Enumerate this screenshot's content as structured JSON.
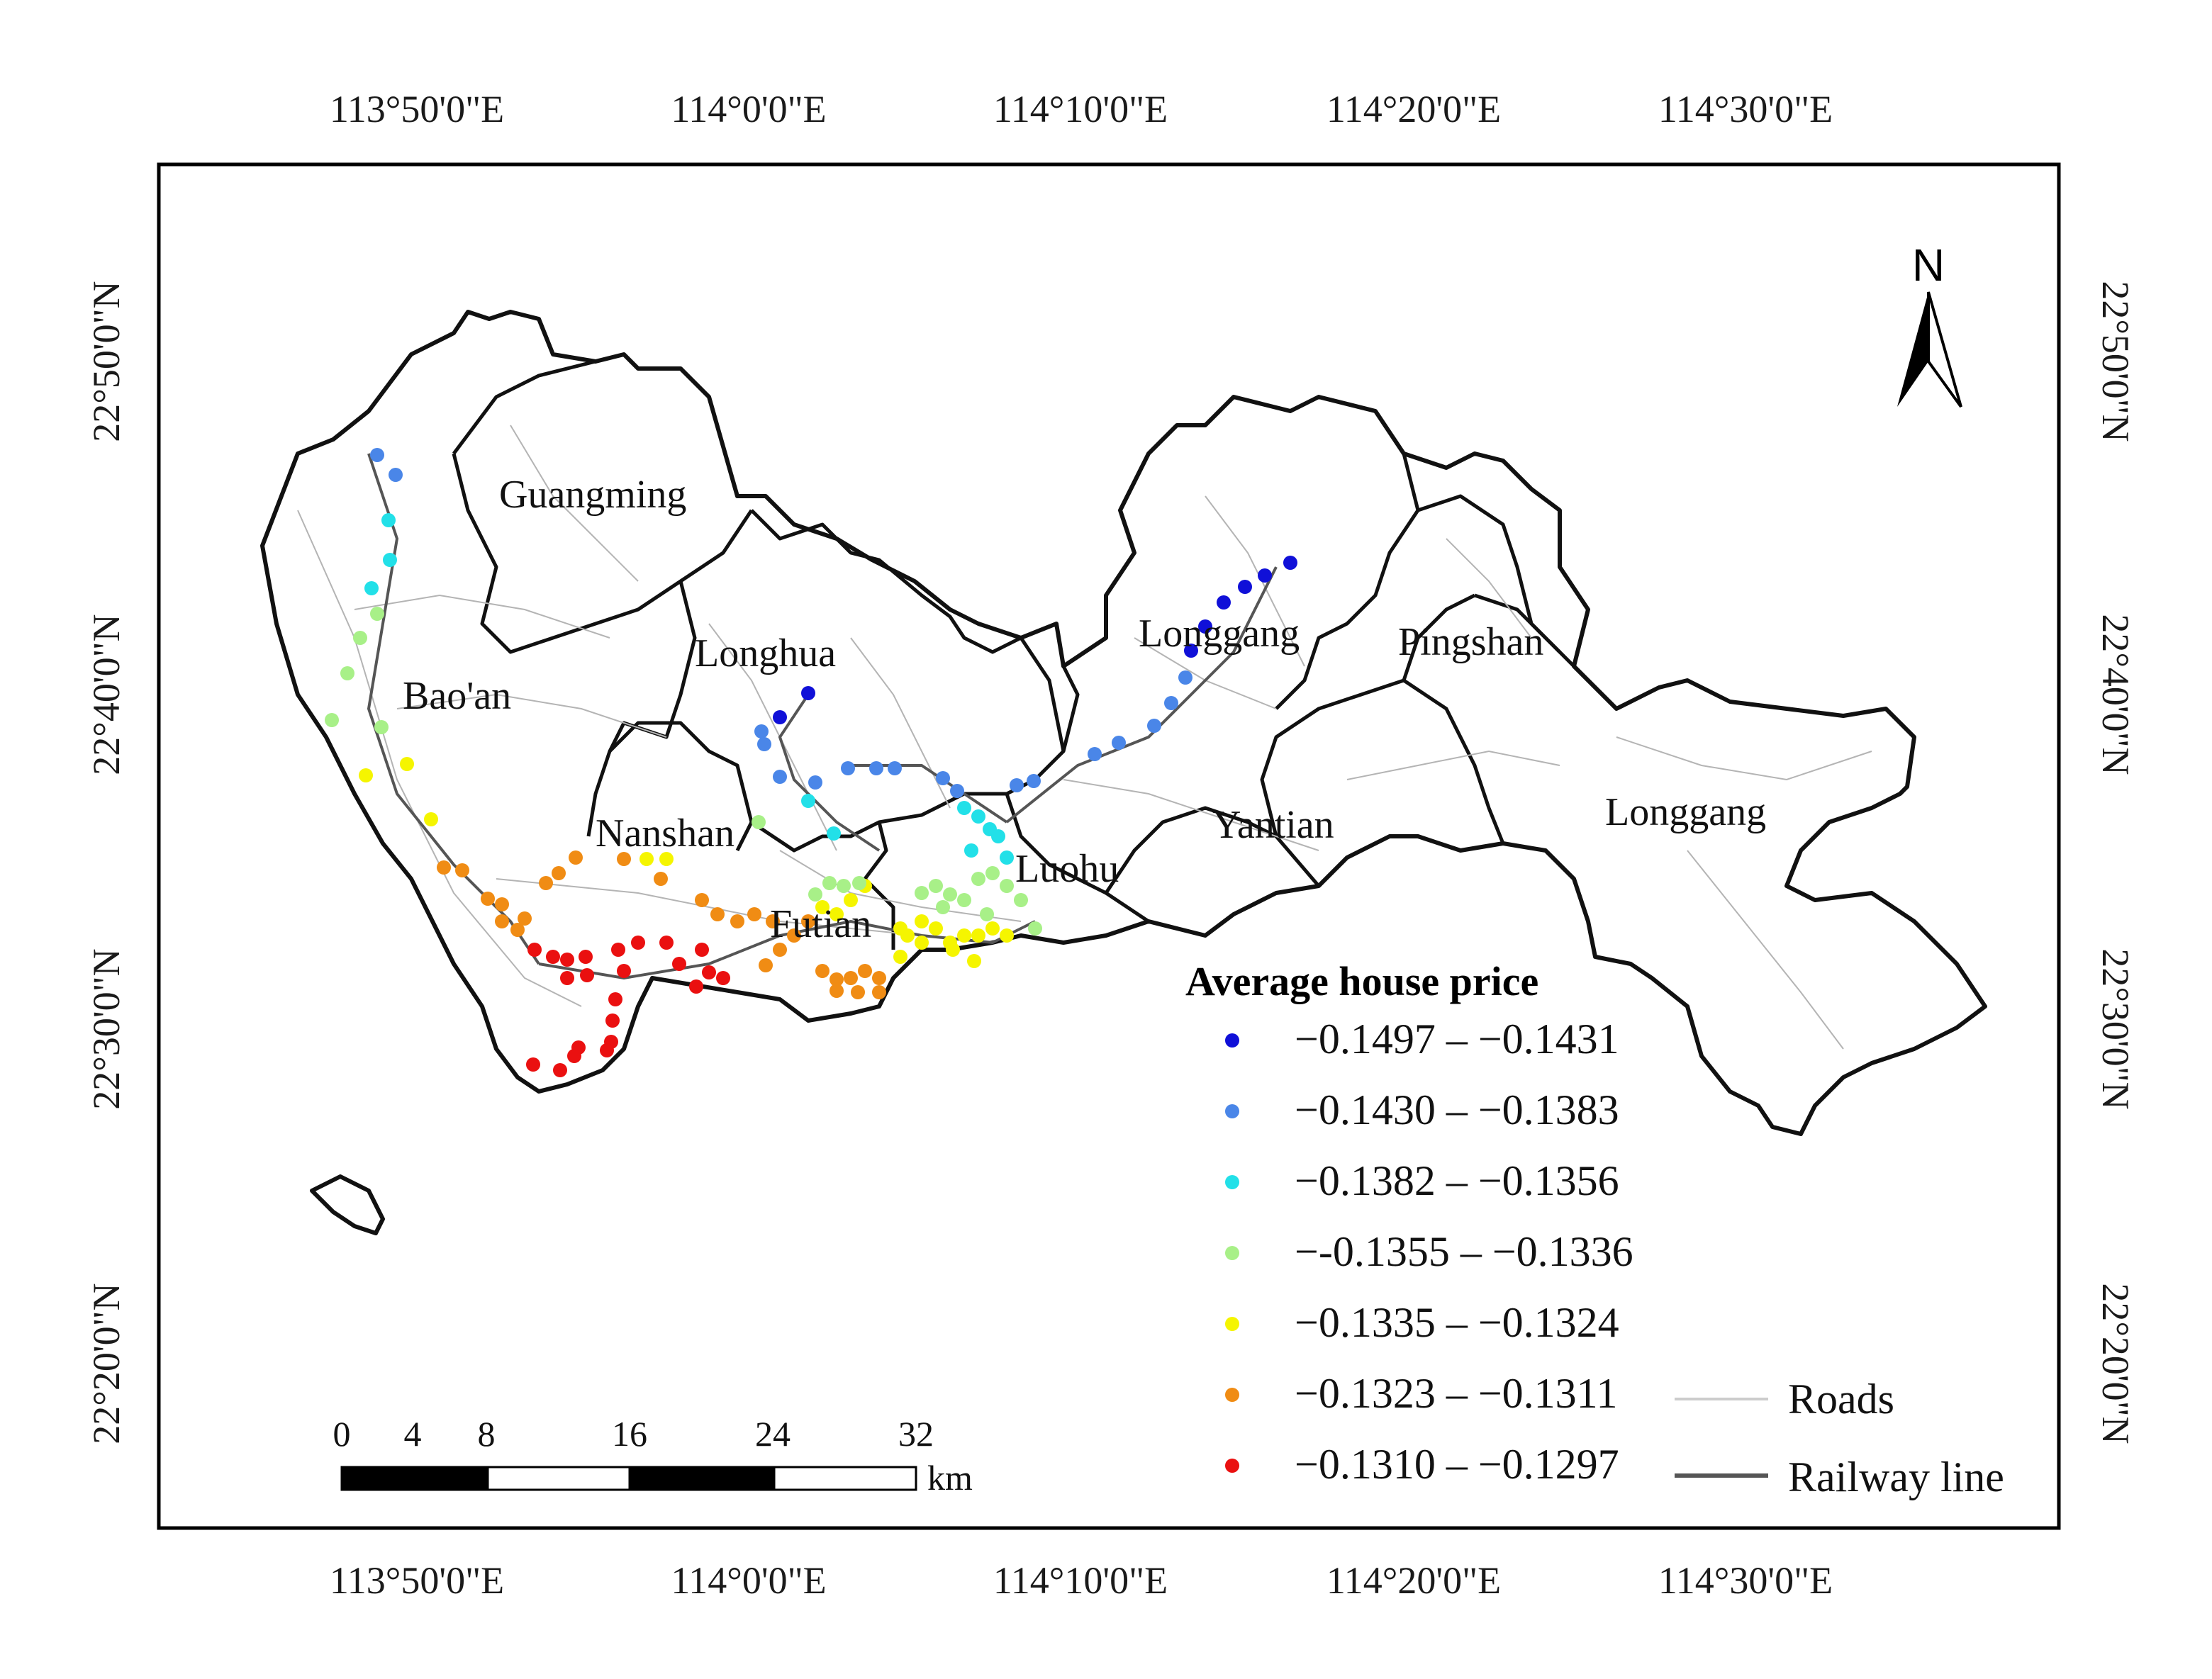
{
  "map": {
    "top_lon_labels": [
      "113°50'0\"E",
      "114°0'0\"E",
      "114°10'0\"E",
      "114°20'0\"E",
      "114°30'0\"E"
    ],
    "bottom_lon_labels": [
      "113°50'0\"E",
      "114°0'0\"E",
      "114°10'0\"E",
      "114°20'0\"E",
      "114°30'0\"E"
    ],
    "left_lat_labels": [
      "22°50'0\"N",
      "22°40'0\"N",
      "22°30'0\"N",
      "22°20'0\"N"
    ],
    "right_lat_labels": [
      "22°50'0\"N",
      "22°40'0\"N",
      "22°30'0\"N",
      "22°20'0\"N"
    ],
    "districts": [
      "Guangming",
      "Longhua",
      "Longgang",
      "Pingshan",
      "Bao'an",
      "Nanshan",
      "Yantian",
      "Longgang",
      "Futian",
      "Luohu"
    ],
    "north_arrow": "N",
    "scale_bar": {
      "ticks": [
        "0",
        "4",
        "8",
        "16",
        "24",
        "32"
      ],
      "unit": "km"
    }
  },
  "legend": {
    "title": "Average house price",
    "classes": [
      {
        "label": "−0.1497 – −0.1431",
        "color": "#1010d8"
      },
      {
        "label": "−0.1430 – −0.1383",
        "color": "#4a86e8"
      },
      {
        "label": "−0.1382 – −0.1356",
        "color": "#22e0e8"
      },
      {
        "label": "−-0.1355 – −0.1336",
        "color": "#a8f088"
      },
      {
        "label": "−0.1335 – −0.1324",
        "color": "#f5f500"
      },
      {
        "label": "−0.1323 – −0.1311",
        "color": "#f08c14"
      },
      {
        "label": "−0.1310 – −0.1297",
        "color": "#ea1010"
      }
    ],
    "line_items": [
      {
        "label": "Roads",
        "color": "#cccccc"
      },
      {
        "label": "Railway line",
        "color": "#555555"
      }
    ]
  }
}
